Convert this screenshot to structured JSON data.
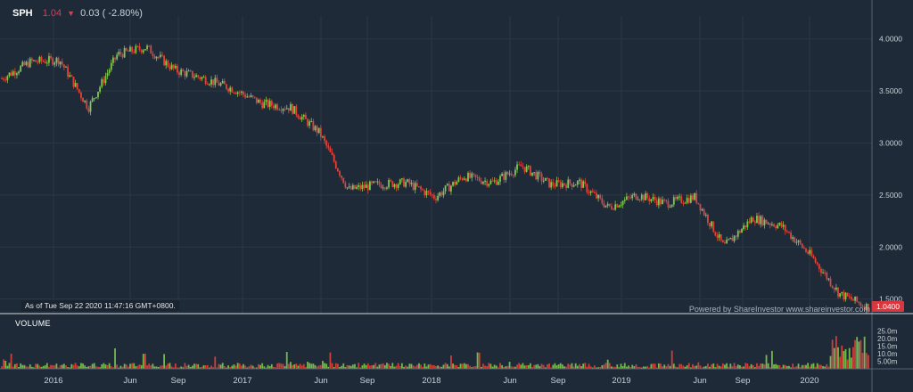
{
  "ticker": {
    "symbol": "SPH",
    "price": "1.04",
    "arrow_icon": "down-triangle-icon",
    "change": "0.03 ( -2.80%)"
  },
  "as_of": "As of Tue Sep 22 2020 11:47:16 GMT+0800.",
  "powered_by": "Powered by ShareInvestor www.shareinvestor.com",
  "volume_label": "VOLUME",
  "last_price_badge": "1.0400",
  "colors": {
    "background": "#1f2a38",
    "up": "#7ec850",
    "down": "#e0433b",
    "grid": "#2c3746",
    "badge": "#d9363e"
  },
  "chart_data": [
    {
      "type": "line",
      "subtype": "candlestick",
      "title": "SPH",
      "y_tick_labels": [
        "4.0000",
        "3.5000",
        "3.0000",
        "2.5000",
        "2.0000",
        "1.5000"
      ],
      "ylim": [
        1.36,
        4.22
      ],
      "x_tick_labels": [
        "2016",
        "Jun",
        "Sep",
        "2017",
        "Jun",
        "Sep",
        "2018",
        "Jun",
        "Sep",
        "2019",
        "Jun",
        "Sep",
        "2020"
      ],
      "x": [
        "2015-09",
        "2015-11",
        "2016-01",
        "2016-03",
        "2016-05",
        "2016-07",
        "2016-09",
        "2016-11",
        "2017-01",
        "2017-03",
        "2017-05",
        "2017-07",
        "2017-09",
        "2017-11",
        "2018-01",
        "2018-03",
        "2018-05",
        "2018-07",
        "2018-09",
        "2018-11",
        "2019-01",
        "2019-03",
        "2019-05",
        "2019-07",
        "2019-09",
        "2019-11",
        "2020-01",
        "2020-03",
        "2020-05",
        "2020-07",
        "2020-09"
      ],
      "values": [
        3.62,
        3.78,
        3.8,
        3.34,
        3.85,
        3.92,
        3.7,
        3.62,
        3.52,
        3.38,
        3.34,
        3.1,
        2.55,
        2.6,
        2.62,
        2.48,
        2.68,
        2.62,
        2.78,
        2.6,
        2.62,
        2.38,
        2.5,
        2.42,
        2.48,
        2.0,
        2.28,
        2.2,
        1.92,
        1.55,
        1.42
      ],
      "last_value": 1.04,
      "grid": true
    },
    {
      "type": "bar",
      "title": "VOLUME",
      "y_tick_labels": [
        "25.0m",
        "20.0m",
        "15.0m",
        "10.0m",
        "5.00m"
      ],
      "ylim": [
        0,
        26
      ],
      "unit": "millions of shares"
    }
  ]
}
